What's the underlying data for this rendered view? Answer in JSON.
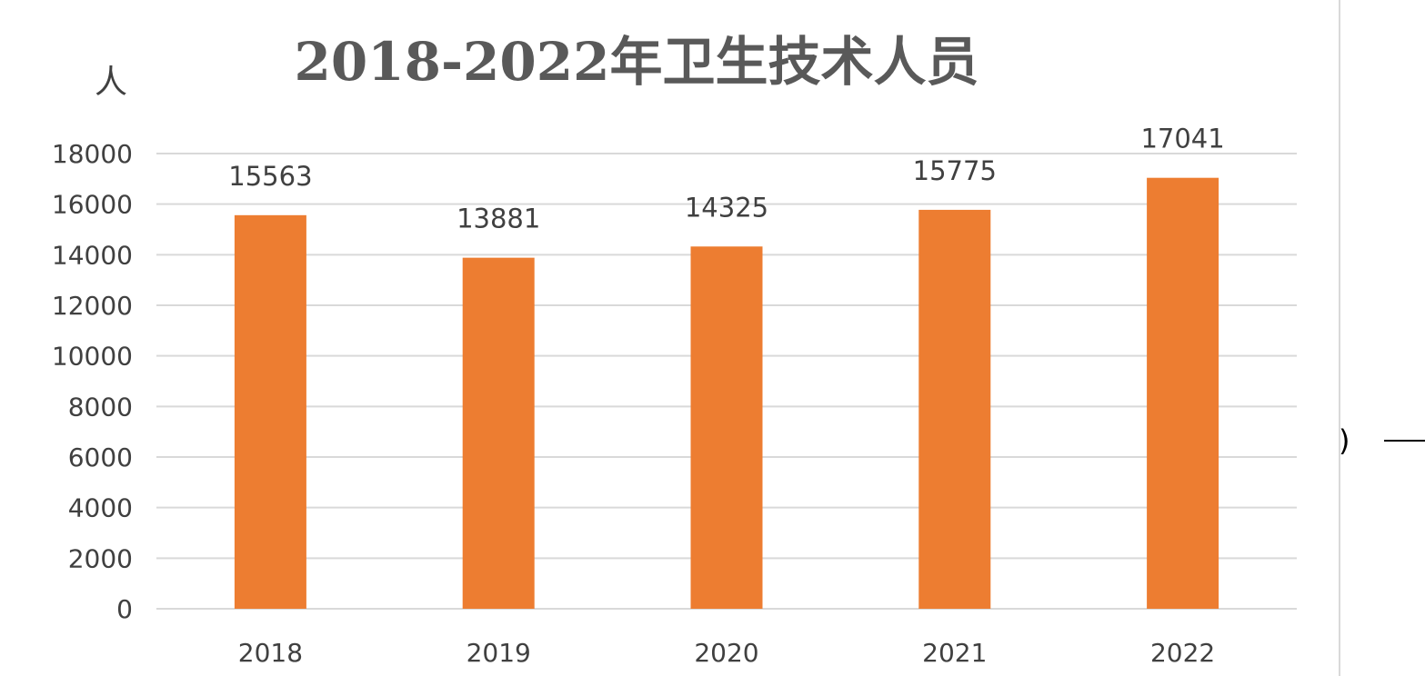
{
  "chart_data": {
    "type": "bar",
    "title": "2018-2022年卫生技术人员",
    "ylabel": "人",
    "xlabel": "",
    "categories": [
      "2018",
      "2019",
      "2020",
      "2021",
      "2022"
    ],
    "values": [
      15563,
      13881,
      14325,
      15775,
      17041
    ],
    "data_labels": [
      "15563",
      "13881",
      "14325",
      "15775",
      "17041"
    ],
    "ylim": [
      0,
      18000
    ],
    "yticks": [
      "0",
      "2000",
      "4000",
      "6000",
      "8000",
      "10000",
      "12000",
      "14000",
      "16000",
      "18000"
    ],
    "grid": true,
    "legend": "none",
    "bar_color": "#ed7d31"
  },
  "fragment": {
    "text": ")"
  }
}
